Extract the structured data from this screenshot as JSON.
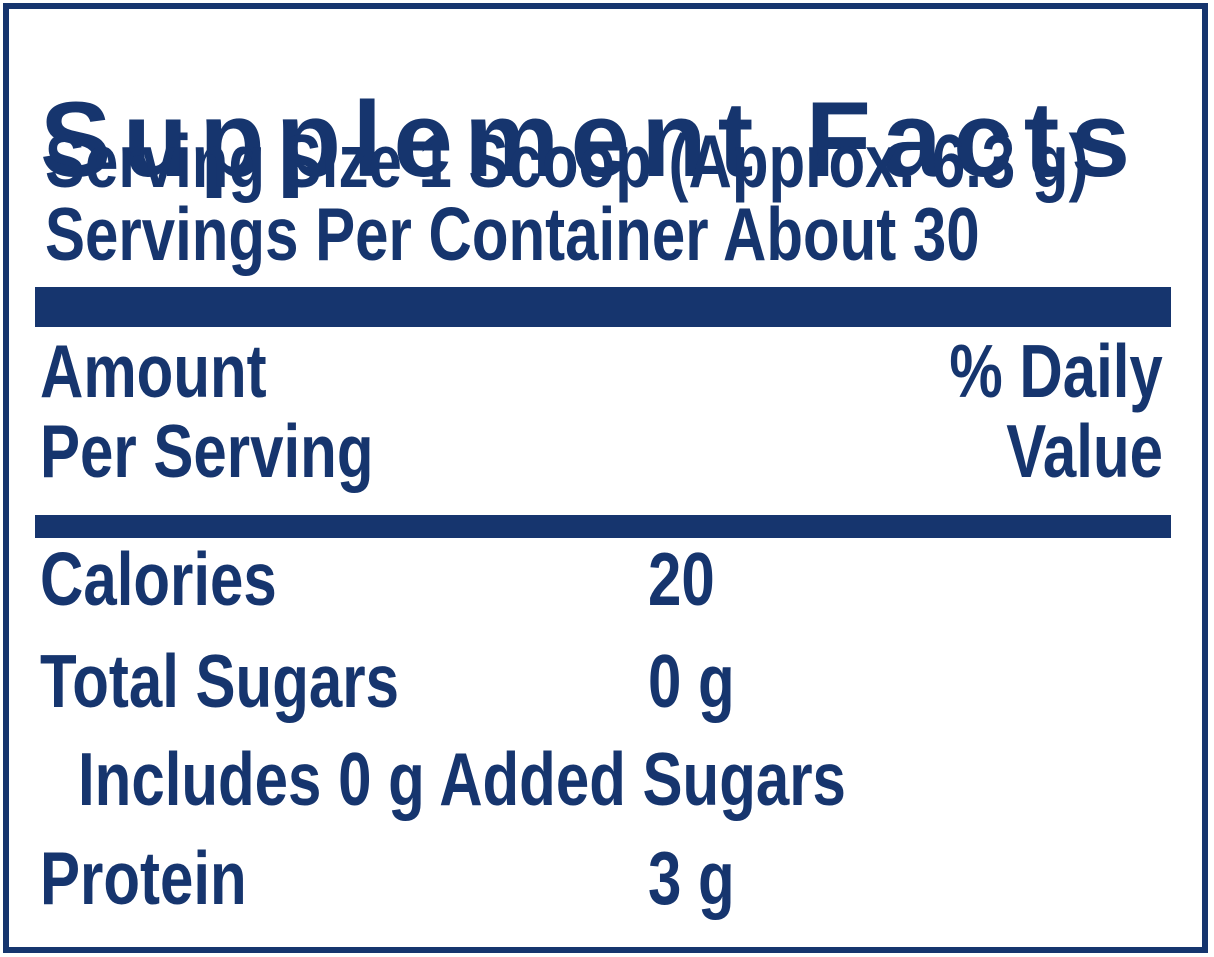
{
  "panel": {
    "title": "Supplement Facts",
    "serving_size": "Serving Size 1 Scoop (Approx. 6.3 g)",
    "servings_per_container": "Servings Per Container About 30",
    "columns": {
      "amount_line1": "Amount",
      "amount_line2": "Per Serving",
      "daily_value_line1": "% Daily",
      "daily_value_line2": "Value"
    },
    "rows": [
      {
        "name": "Calories",
        "value": "20"
      },
      {
        "name": "Total Sugars",
        "value": "0 g"
      },
      {
        "name": "Includes 0 g Added Sugars",
        "value": ""
      },
      {
        "name": "Protein",
        "value": "3 g"
      }
    ]
  },
  "colors": {
    "navy": "#16356e",
    "background": "#ffffff"
  }
}
